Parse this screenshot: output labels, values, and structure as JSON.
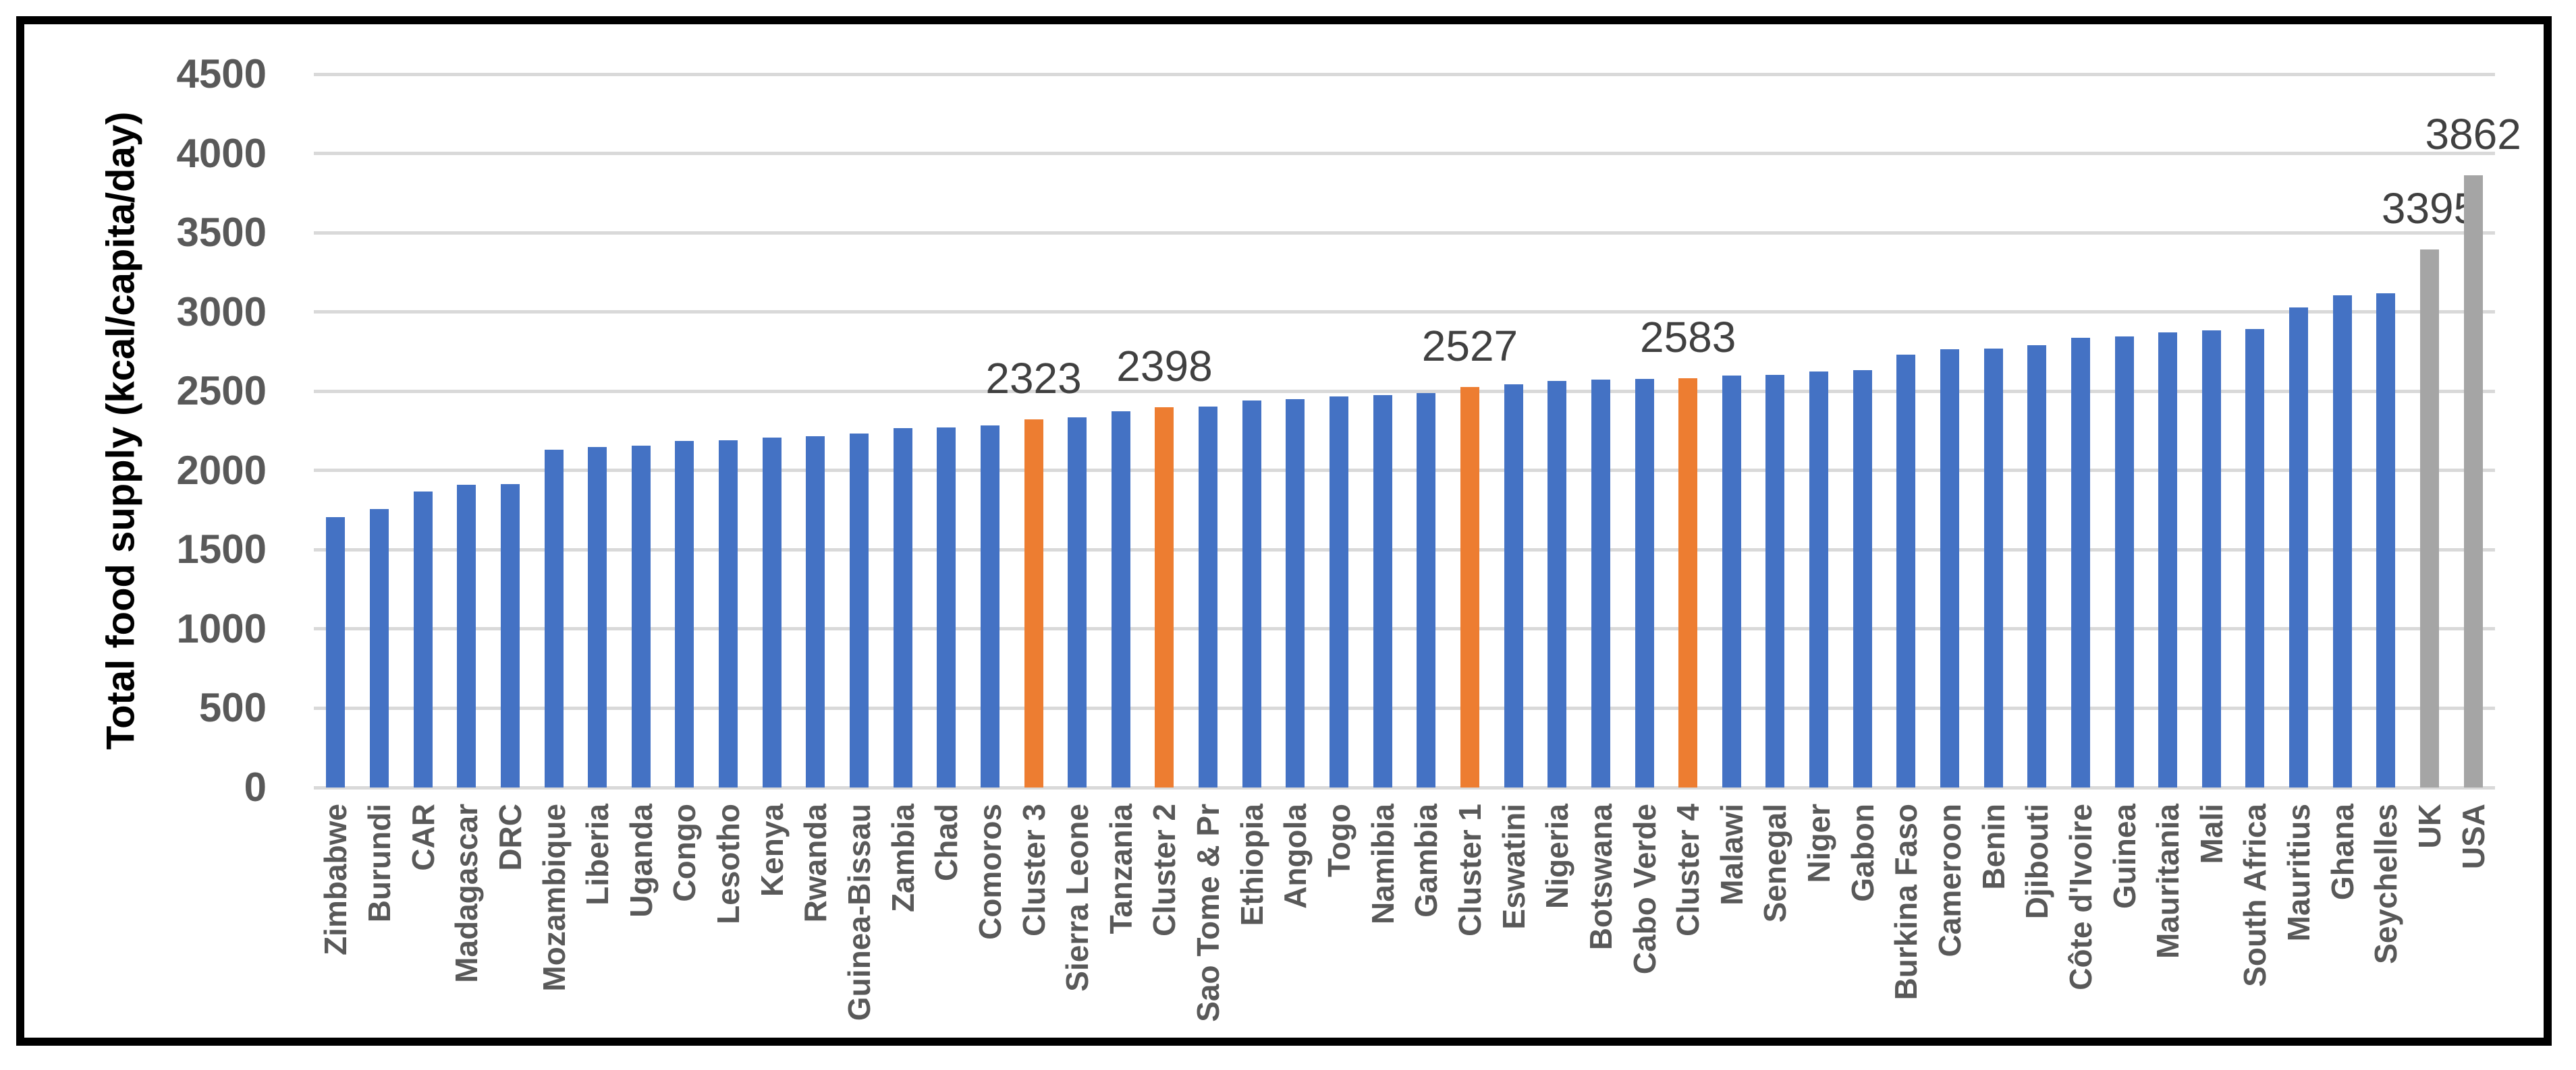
{
  "chart_data": {
    "type": "bar",
    "title": "",
    "ylabel": "Total food supply (kcal/capita/day)",
    "xlabel": "",
    "ylim": [
      0,
      4500
    ],
    "ytick_step": 500,
    "yticks": [
      0,
      500,
      1000,
      1500,
      2000,
      2500,
      3000,
      3500,
      4000,
      4500
    ],
    "grid": true,
    "legend_position": "none",
    "categories": [
      "Zimbabwe",
      "Burundi",
      "CAR",
      "Madagascar",
      "DRC",
      "Mozambique",
      "Liberia",
      "Uganda",
      "Congo",
      "Lesotho",
      "Kenya",
      "Rwanda",
      "Guinea-Bissau",
      "Zambia",
      "Chad",
      "Comoros",
      "Cluster 3",
      "Sierra Leone",
      "Tanzania",
      "Cluster 2",
      "Sao Tome & Pr",
      "Ethiopia",
      "Angola",
      "Togo",
      "Namibia",
      "Gambia",
      "Cluster 1",
      "Eswatini",
      "Nigeria",
      "Botswana",
      "Cabo Verde",
      "Cluster 4",
      "Malawi",
      "Senegal",
      "Niger",
      "Gabon",
      "Burkina Faso",
      "Cameroon",
      "Benin",
      "Djibouti",
      "Côte d'Ivoire",
      "Guinea",
      "Mauritania",
      "Mali",
      "South Africa",
      "Mauritius",
      "Ghana",
      "Seychelles",
      "UK",
      "USA"
    ],
    "values": [
      1707,
      1755,
      1868,
      1911,
      1912,
      2130,
      2150,
      2155,
      2185,
      2190,
      2207,
      2217,
      2232,
      2266,
      2271,
      2285,
      2323,
      2333,
      2375,
      2398,
      2405,
      2442,
      2448,
      2466,
      2476,
      2487,
      2527,
      2544,
      2565,
      2573,
      2579,
      2583,
      2597,
      2605,
      2624,
      2632,
      2730,
      2764,
      2769,
      2789,
      2835,
      2845,
      2869,
      2884,
      2892,
      3028,
      3106,
      3117,
      3395,
      3862
    ],
    "groups": [
      "country",
      "country",
      "country",
      "country",
      "country",
      "country",
      "country",
      "country",
      "country",
      "country",
      "country",
      "country",
      "country",
      "country",
      "country",
      "country",
      "cluster",
      "country",
      "country",
      "cluster",
      "country",
      "country",
      "country",
      "country",
      "country",
      "country",
      "cluster",
      "country",
      "country",
      "country",
      "country",
      "cluster",
      "country",
      "country",
      "country",
      "country",
      "country",
      "country",
      "country",
      "country",
      "country",
      "country",
      "country",
      "country",
      "country",
      "country",
      "country",
      "country",
      "benchmark",
      "benchmark"
    ],
    "data_labels": [
      null,
      null,
      null,
      null,
      null,
      null,
      null,
      null,
      null,
      null,
      null,
      null,
      null,
      null,
      null,
      null,
      "2323",
      null,
      null,
      "2398",
      null,
      null,
      null,
      null,
      null,
      null,
      "2527",
      null,
      null,
      null,
      null,
      "2583",
      null,
      null,
      null,
      null,
      null,
      null,
      null,
      null,
      null,
      null,
      null,
      null,
      null,
      null,
      null,
      null,
      "3395",
      "3862"
    ],
    "colors": {
      "country": "#4472C4",
      "cluster": "#ED7D31",
      "benchmark": "#A5A5A5"
    },
    "gridline_color": "#D9D9D9",
    "tick_color": "#595959",
    "category_label_color": "#595959",
    "data_label_color": "#404040",
    "frame_color": "#000000"
  }
}
